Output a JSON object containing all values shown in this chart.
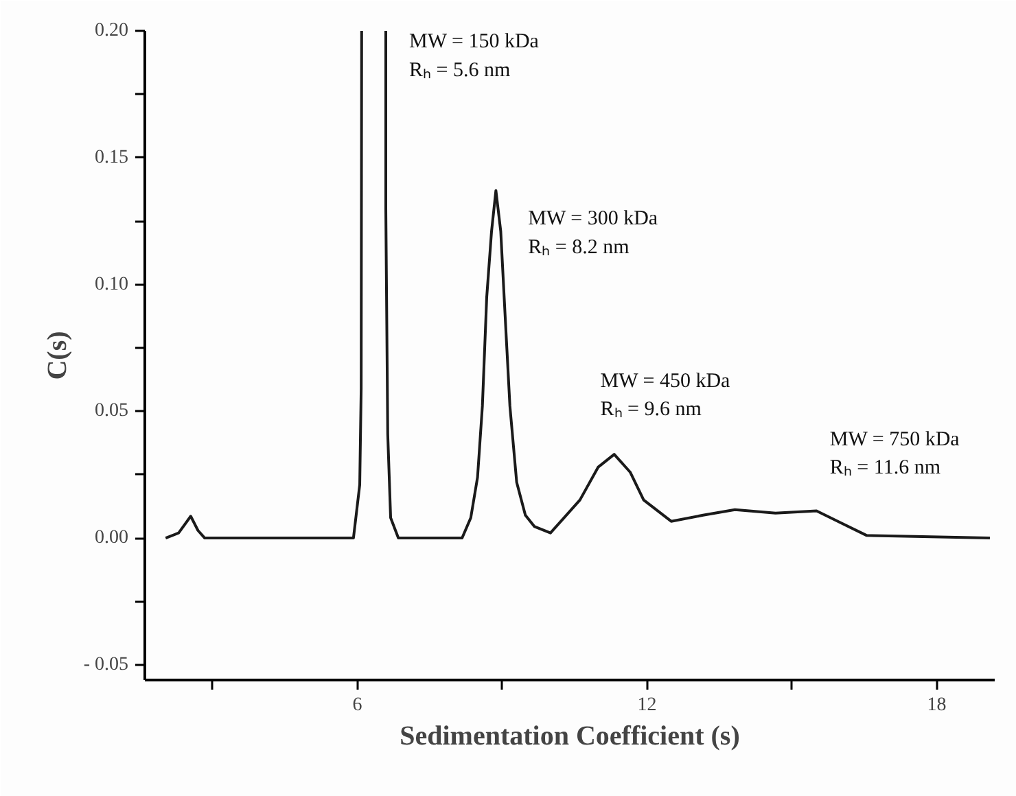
{
  "chart_data": {
    "type": "line",
    "xlabel": "Sedimentation Coefficient (s)",
    "ylabel": "C(s)",
    "x": [
      2.03,
      2.3,
      2.55,
      2.7,
      2.84,
      5.92,
      6.05,
      6.08,
      6.09,
      6.3,
      6.59,
      6.59,
      6.63,
      6.69,
      6.85,
      8.17,
      8.35,
      8.49,
      8.59,
      8.68,
      8.78,
      8.87,
      8.97,
      9.06,
      9.16,
      9.3,
      9.48,
      9.67,
      10.0,
      10.61,
      10.99,
      11.32,
      11.65,
      11.93,
      12.5,
      13.16,
      13.82,
      14.66,
      15.51,
      15.98,
      16.55,
      19.1
    ],
    "series": [
      {
        "color": "#1a1a1a",
        "values": [
          0,
          0.002,
          0.0086,
          0.003,
          0,
          0,
          0.021,
          0.059,
          0.2,
          null,
          0.2,
          0.13,
          0.041,
          0.008,
          0,
          0,
          0.008,
          0.024,
          0.052,
          0.095,
          0.121,
          0.137,
          0.121,
          0.088,
          0.052,
          0.022,
          0.009,
          0.0045,
          0.002,
          0.015,
          0.028,
          0.033,
          0.026,
          0.015,
          0.0066,
          0.009,
          0.0112,
          0.0098,
          0.0107,
          0.0063,
          0.001,
          0
        ]
      }
    ],
    "xlim": [
      1.6,
      19.2
    ],
    "ylim": [
      -0.056,
      0.2
    ],
    "xticks": [
      {
        "value": 3,
        "label": null
      },
      6,
      {
        "value": 9,
        "label": null
      },
      12,
      {
        "value": 15,
        "label": null
      },
      18
    ],
    "yticks": [
      {
        "value": -0.05,
        "label": "- 0.05"
      },
      {
        "value": -0.025,
        "label": null
      },
      {
        "value": 0,
        "label": "0.00"
      },
      {
        "value": 0.025,
        "label": null
      },
      {
        "value": 0.05,
        "label": "0.05"
      },
      {
        "value": 0.075,
        "label": null
      },
      {
        "value": 0.1,
        "label": "0.10"
      },
      {
        "value": 0.125,
        "label": null
      },
      {
        "value": 0.15,
        "label": "0.15"
      },
      {
        "value": 0.175,
        "label": null
      },
      {
        "value": 0.2,
        "label": "0.20"
      }
    ],
    "annotations": [
      "MW = 150 kDa\nRₕ = 5.6 nm",
      "MW = 300 kDa\nRₕ = 8.2 nm",
      "MW = 450 kDa\nRₕ = 9.6 nm",
      "MW = 750 kDa\nRₕ = 11.6 nm"
    ],
    "grid": false,
    "marker": "none",
    "line_style": "solid"
  }
}
